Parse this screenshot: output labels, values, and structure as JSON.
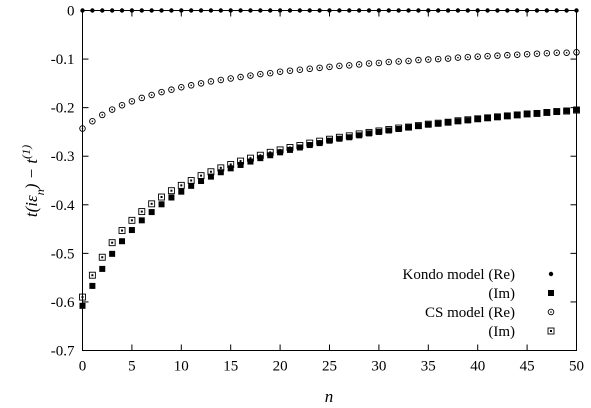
{
  "chart_data": {
    "type": "scatter",
    "title": "",
    "xlabel": "n",
    "ylabel": "t(iε_n) − t^(1)",
    "xlim": [
      0,
      50
    ],
    "ylim": [
      -0.7,
      0
    ],
    "x_ticks": [
      0,
      5,
      10,
      15,
      20,
      25,
      30,
      35,
      40,
      45,
      50
    ],
    "y_ticks": [
      0,
      -0.1,
      -0.2,
      -0.3,
      -0.4,
      -0.5,
      -0.6,
      -0.7
    ],
    "x_tick_labels": [
      "0",
      "5",
      "10",
      "15",
      "20",
      "25",
      "30",
      "35",
      "40",
      "45",
      "50"
    ],
    "y_tick_labels": [
      "0",
      "-0.1",
      "-0.2",
      "-0.3",
      "-0.4",
      "-0.5",
      "-0.6",
      "-0.7"
    ],
    "grid": false,
    "legend_position": "bottom-right",
    "x": [
      0,
      1,
      2,
      3,
      4,
      5,
      6,
      7,
      8,
      9,
      10,
      11,
      12,
      13,
      14,
      15,
      16,
      17,
      18,
      19,
      20,
      21,
      22,
      23,
      24,
      25,
      26,
      27,
      28,
      29,
      30,
      31,
      32,
      33,
      34,
      35,
      36,
      37,
      38,
      39,
      40,
      41,
      42,
      43,
      44,
      45,
      46,
      47,
      48,
      49,
      50
    ],
    "series": [
      {
        "name": "Kondo model (Re)",
        "marker": "filled-circle",
        "values": [
          0,
          0,
          0,
          0,
          0,
          0,
          0,
          0,
          0,
          0,
          0,
          0,
          0,
          0,
          0,
          0,
          0,
          0,
          0,
          0,
          0,
          0,
          0,
          0,
          0,
          0,
          0,
          0,
          0,
          0,
          0,
          0,
          0,
          0,
          0,
          0,
          0,
          0,
          0,
          0,
          0,
          0,
          0,
          0,
          0,
          0,
          0,
          0,
          0,
          0,
          0
        ]
      },
      {
        "name": "(Im)",
        "marker": "filled-square",
        "values": [
          -0.608,
          -0.567,
          -0.532,
          -0.501,
          -0.475,
          -0.452,
          -0.432,
          -0.415,
          -0.399,
          -0.385,
          -0.373,
          -0.361,
          -0.351,
          -0.342,
          -0.333,
          -0.325,
          -0.318,
          -0.311,
          -0.304,
          -0.298,
          -0.292,
          -0.287,
          -0.282,
          -0.277,
          -0.273,
          -0.268,
          -0.264,
          -0.261,
          -0.257,
          -0.253,
          -0.25,
          -0.247,
          -0.244,
          -0.241,
          -0.238,
          -0.235,
          -0.233,
          -0.23,
          -0.228,
          -0.226,
          -0.223,
          -0.221,
          -0.219,
          -0.217,
          -0.215,
          -0.213,
          -0.211,
          -0.209,
          -0.208,
          -0.206,
          -0.204
        ]
      },
      {
        "name": "CS model (Re)",
        "marker": "open-circle",
        "values": [
          -0.243,
          -0.228,
          -0.215,
          -0.204,
          -0.195,
          -0.187,
          -0.18,
          -0.174,
          -0.168,
          -0.163,
          -0.158,
          -0.154,
          -0.15,
          -0.146,
          -0.143,
          -0.14,
          -0.137,
          -0.134,
          -0.131,
          -0.129,
          -0.126,
          -0.124,
          -0.122,
          -0.12,
          -0.118,
          -0.116,
          -0.114,
          -0.113,
          -0.111,
          -0.109,
          -0.108,
          -0.106,
          -0.105,
          -0.104,
          -0.102,
          -0.101,
          -0.1,
          -0.099,
          -0.097,
          -0.096,
          -0.095,
          -0.094,
          -0.093,
          -0.092,
          -0.091,
          -0.09,
          -0.089,
          -0.088,
          -0.087,
          -0.087,
          -0.086
        ]
      },
      {
        "name": "(Im)",
        "marker": "open-square",
        "values": [
          -0.59,
          -0.545,
          -0.508,
          -0.478,
          -0.453,
          -0.432,
          -0.414,
          -0.398,
          -0.384,
          -0.371,
          -0.36,
          -0.35,
          -0.34,
          -0.332,
          -0.324,
          -0.317,
          -0.31,
          -0.304,
          -0.298,
          -0.292,
          -0.287,
          -0.282,
          -0.278,
          -0.273,
          -0.269,
          -0.265,
          -0.261,
          -0.258,
          -0.254,
          -0.251,
          -0.248,
          -0.245,
          -0.242,
          -0.24,
          -0.237,
          -0.234,
          -0.232,
          -0.23,
          -0.227,
          -0.225,
          -0.223,
          -0.221,
          -0.219,
          -0.217,
          -0.215,
          -0.213,
          -0.212,
          -0.21,
          -0.208,
          -0.207,
          -0.205
        ]
      }
    ]
  }
}
